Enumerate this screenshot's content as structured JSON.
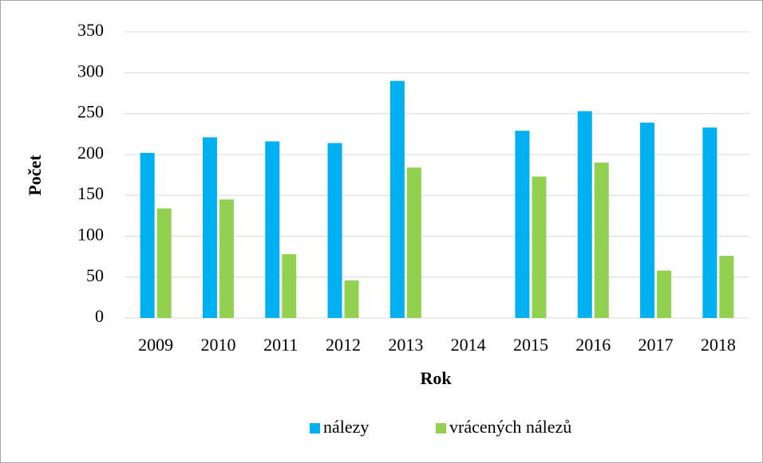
{
  "chart_data": {
    "type": "bar",
    "categories": [
      "2009",
      "2010",
      "2011",
      "2012",
      "2013",
      "2014",
      "2015",
      "2016",
      "2017",
      "2018"
    ],
    "series": [
      {
        "name": "nálezy",
        "color": "#00b0f0",
        "values": [
          202,
          221,
          216,
          214,
          290,
          null,
          229,
          253,
          239,
          233
        ]
      },
      {
        "name": "vrácených nálezů",
        "color": "#92d050",
        "values": [
          134,
          145,
          78,
          46,
          184,
          null,
          173,
          190,
          58,
          76
        ]
      }
    ],
    "x_label": "Rok",
    "y_label": "Počet",
    "ylim": [
      0,
      350
    ],
    "yticks": [
      0,
      50,
      100,
      150,
      200,
      250,
      300,
      350
    ],
    "grid": true,
    "legend": "bottom"
  }
}
